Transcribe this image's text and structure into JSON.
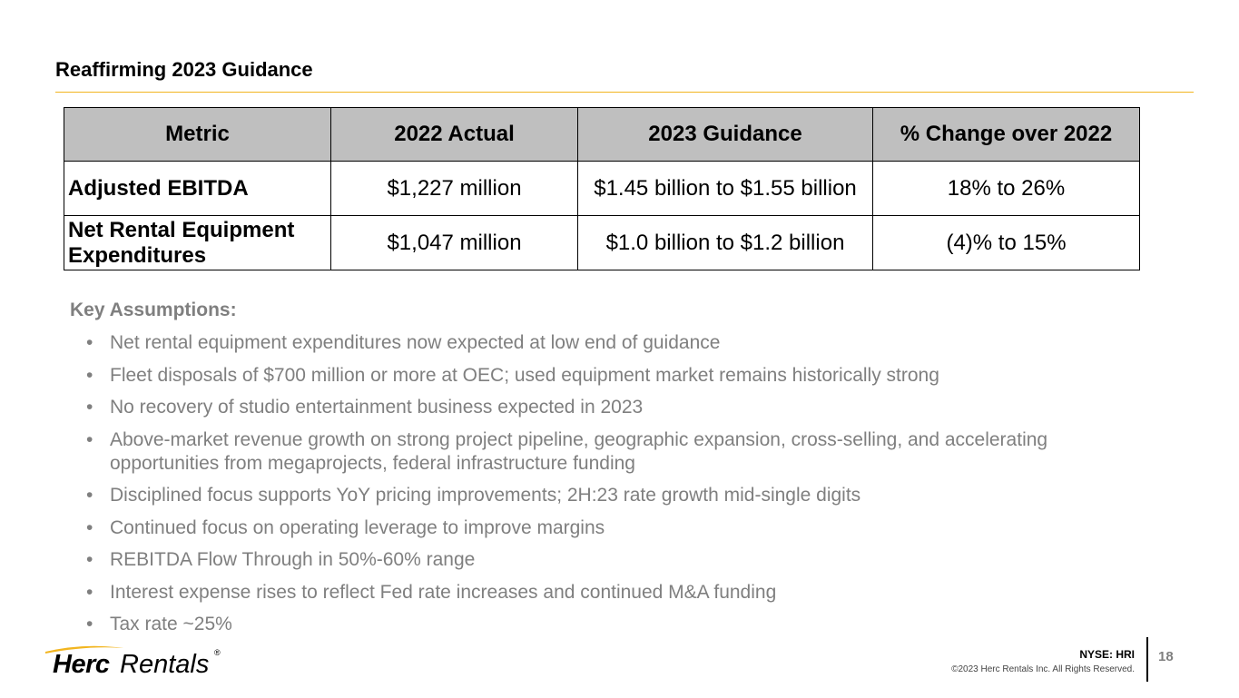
{
  "header": {
    "title": "Reaffirming 2023 Guidance"
  },
  "table": {
    "headers": [
      "Metric",
      "2022 Actual",
      "2023 Guidance",
      "% Change over 2022"
    ],
    "rows": [
      [
        "Adjusted EBITDA",
        "$1,227 million",
        "$1.45 billion to $1.55 billion",
        "18% to 26%"
      ],
      [
        "Net Rental Equipment Expenditures",
        "$1,047 million",
        "$1.0 billion to $1.2 billion",
        "(4)% to 15%"
      ]
    ]
  },
  "assumptions": {
    "heading": "Key Assumptions:",
    "bullet": "•",
    "items": [
      "Net rental equipment expenditures now expected at low end of guidance",
      "Fleet disposals of $700 million or more at OEC; used equipment market remains historically strong",
      "No recovery of studio entertainment business expected in 2023",
      "Above-market revenue growth on strong project pipeline, geographic expansion, cross-selling, and accelerating opportunities from megaprojects, federal infrastructure funding",
      "Disciplined focus supports YoY pricing improvements; 2H:23 rate growth mid-single digits",
      "Continued focus on operating leverage to improve margins",
      "REBITDA Flow Through in 50%-60% range",
      "Interest expense rises to reflect Fed rate increases and continued M&A funding",
      "Tax rate ~25%"
    ]
  },
  "footer": {
    "logo_bold": "Herc",
    "logo_regular": "Rentals",
    "logo_reg_mark": "®",
    "ticker": "NYSE: HRI",
    "copyright": "©2023 Herc Rentals Inc.  All Rights Reserved.",
    "page_number": "18"
  },
  "colors": {
    "accent": "#f2b51f",
    "header_fill": "#bfbfbf",
    "body_gray": "#7f7f7f"
  }
}
